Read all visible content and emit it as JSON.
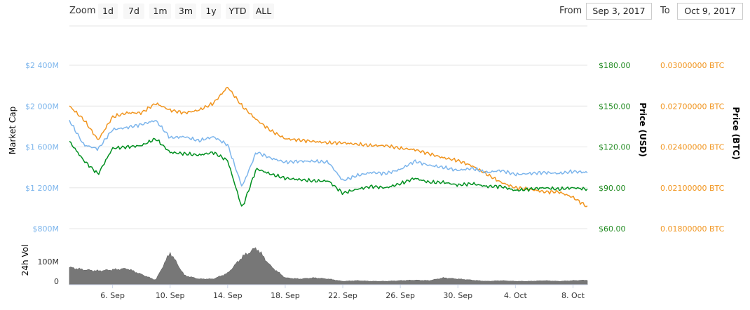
{
  "toolbar": {
    "zoom_label": "Zoom",
    "zoom_buttons": [
      "1d",
      "7d",
      "1m",
      "3m",
      "1y",
      "YTD",
      "ALL"
    ],
    "from_label": "From",
    "from_value": "Sep 3, 2017",
    "to_label": "To",
    "to_value": "Oct 9, 2017"
  },
  "colors": {
    "market_cap": "#7cb5ec",
    "price_usd": "#008f1f",
    "price_btc": "#f1951f",
    "volume": "#777777",
    "usd_axis": "#1f8a1f",
    "btc_axis": "#f1951f",
    "mcap_axis": "#7cb5ec"
  },
  "chart_data": [
    {
      "type": "line",
      "x_axis": {
        "type": "date",
        "ticks": [
          "6. Sep",
          "10. Sep",
          "14. Sep",
          "18. Sep",
          "22. Sep",
          "26. Sep",
          "30. Sep",
          "4. Oct",
          "8. Oct"
        ]
      },
      "axes": {
        "market_cap": {
          "label": "Market Cap",
          "ticks": [
            "$800M",
            "$1 200M",
            "$1 600M",
            "$2 000M",
            "$2 400M"
          ],
          "ylim": [
            800,
            2400
          ],
          "unit": "M USD"
        },
        "price_usd": {
          "label": "Price (USD)",
          "ticks": [
            "$60.00",
            "$90.00",
            "$120.00",
            "$150.00",
            "$180.00"
          ],
          "ylim": [
            60,
            180
          ]
        },
        "price_btc": {
          "label": "Price (BTC)",
          "ticks": [
            "0.01800000 BTC",
            "0.02100000 BTC",
            "0.02400000 BTC",
            "0.02700000 BTC",
            "0.03000000 BTC"
          ],
          "ylim": [
            0.018,
            0.03
          ]
        }
      },
      "grid": true,
      "series": [
        {
          "name": "Market Cap",
          "axis": "market_cap",
          "x": [
            "2017-09-03",
            "2017-09-04",
            "2017-09-05",
            "2017-09-06",
            "2017-09-07",
            "2017-09-08",
            "2017-09-09",
            "2017-09-10",
            "2017-09-11",
            "2017-09-12",
            "2017-09-13",
            "2017-09-14",
            "2017-09-15",
            "2017-09-16",
            "2017-09-17",
            "2017-09-18",
            "2017-09-19",
            "2017-09-20",
            "2017-09-21",
            "2017-09-22",
            "2017-09-23",
            "2017-09-24",
            "2017-09-25",
            "2017-09-26",
            "2017-09-27",
            "2017-09-28",
            "2017-09-29",
            "2017-09-30",
            "2017-10-01",
            "2017-10-02",
            "2017-10-03",
            "2017-10-04",
            "2017-10-05",
            "2017-10-06",
            "2017-10-07",
            "2017-10-08",
            "2017-10-09"
          ],
          "values": [
            1860,
            1620,
            1580,
            1770,
            1790,
            1820,
            1860,
            1690,
            1700,
            1660,
            1700,
            1620,
            1210,
            1550,
            1490,
            1450,
            1460,
            1460,
            1450,
            1270,
            1320,
            1350,
            1340,
            1380,
            1460,
            1420,
            1400,
            1370,
            1390,
            1350,
            1370,
            1330,
            1340,
            1350,
            1340,
            1360,
            1350
          ]
        },
        {
          "name": "Price (USD)",
          "axis": "price_usd",
          "x": [
            "2017-09-03",
            "2017-09-04",
            "2017-09-05",
            "2017-09-06",
            "2017-09-07",
            "2017-09-08",
            "2017-09-09",
            "2017-09-10",
            "2017-09-11",
            "2017-09-12",
            "2017-09-13",
            "2017-09-14",
            "2017-09-15",
            "2017-09-16",
            "2017-09-17",
            "2017-09-18",
            "2017-09-19",
            "2017-09-20",
            "2017-09-21",
            "2017-09-22",
            "2017-09-23",
            "2017-09-24",
            "2017-09-25",
            "2017-09-26",
            "2017-09-27",
            "2017-09-28",
            "2017-09-29",
            "2017-09-30",
            "2017-10-01",
            "2017-10-02",
            "2017-10-03",
            "2017-10-04",
            "2017-10-05",
            "2017-10-06",
            "2017-10-07",
            "2017-10-08",
            "2017-10-09"
          ],
          "values": [
            124,
            110,
            100,
            119,
            120,
            121,
            126,
            116,
            115,
            114,
            116,
            110,
            75,
            104,
            100,
            97,
            96,
            95,
            95,
            86,
            89,
            91,
            90,
            93,
            97,
            94,
            94,
            92,
            93,
            91,
            91,
            88,
            89,
            90,
            89,
            90,
            89
          ]
        },
        {
          "name": "Price (BTC)",
          "axis": "price_btc",
          "x": [
            "2017-09-03",
            "2017-09-04",
            "2017-09-05",
            "2017-09-06",
            "2017-09-07",
            "2017-09-08",
            "2017-09-09",
            "2017-09-10",
            "2017-09-11",
            "2017-09-12",
            "2017-09-13",
            "2017-09-14",
            "2017-09-15",
            "2017-09-16",
            "2017-09-17",
            "2017-09-18",
            "2017-09-19",
            "2017-09-20",
            "2017-09-21",
            "2017-09-22",
            "2017-09-23",
            "2017-09-24",
            "2017-09-25",
            "2017-09-26",
            "2017-09-27",
            "2017-09-28",
            "2017-09-29",
            "2017-09-30",
            "2017-10-01",
            "2017-10-02",
            "2017-10-03",
            "2017-10-04",
            "2017-10-05",
            "2017-10-06",
            "2017-10-07",
            "2017-10-08",
            "2017-10-09"
          ],
          "values": [
            0.027,
            0.026,
            0.0245,
            0.0262,
            0.0265,
            0.0265,
            0.0272,
            0.0267,
            0.0265,
            0.0267,
            0.0272,
            0.0284,
            0.027,
            0.026,
            0.0252,
            0.0246,
            0.0245,
            0.0244,
            0.0243,
            0.0243,
            0.0242,
            0.0241,
            0.0241,
            0.0239,
            0.0238,
            0.0235,
            0.0232,
            0.023,
            0.0226,
            0.022,
            0.0214,
            0.021,
            0.0209,
            0.0207,
            0.0207,
            0.0203,
            0.0196
          ]
        }
      ]
    },
    {
      "type": "area",
      "axis_label": "24h Vol",
      "ticks": [
        "0",
        "100M"
      ],
      "ylim": [
        0,
        200
      ],
      "unit": "M USD",
      "x": [
        "2017-09-03",
        "2017-09-04",
        "2017-09-05",
        "2017-09-06",
        "2017-09-07",
        "2017-09-08",
        "2017-09-09",
        "2017-09-10",
        "2017-09-11",
        "2017-09-12",
        "2017-09-13",
        "2017-09-14",
        "2017-09-15",
        "2017-09-16",
        "2017-09-17",
        "2017-09-18",
        "2017-09-19",
        "2017-09-20",
        "2017-09-21",
        "2017-09-22",
        "2017-09-23",
        "2017-09-24",
        "2017-09-25",
        "2017-09-26",
        "2017-09-27",
        "2017-09-28",
        "2017-09-29",
        "2017-09-30",
        "2017-10-01",
        "2017-10-02",
        "2017-10-03",
        "2017-10-04",
        "2017-10-05",
        "2017-10-06",
        "2017-10-07",
        "2017-10-08",
        "2017-10-09"
      ],
      "values": [
        75,
        65,
        60,
        65,
        70,
        45,
        20,
        140,
        40,
        25,
        25,
        50,
        120,
        160,
        80,
        30,
        25,
        30,
        25,
        15,
        18,
        15,
        15,
        18,
        20,
        18,
        30,
        25,
        20,
        15,
        18,
        15,
        15,
        18,
        15,
        18,
        20
      ],
      "name": "24h Vol"
    }
  ]
}
